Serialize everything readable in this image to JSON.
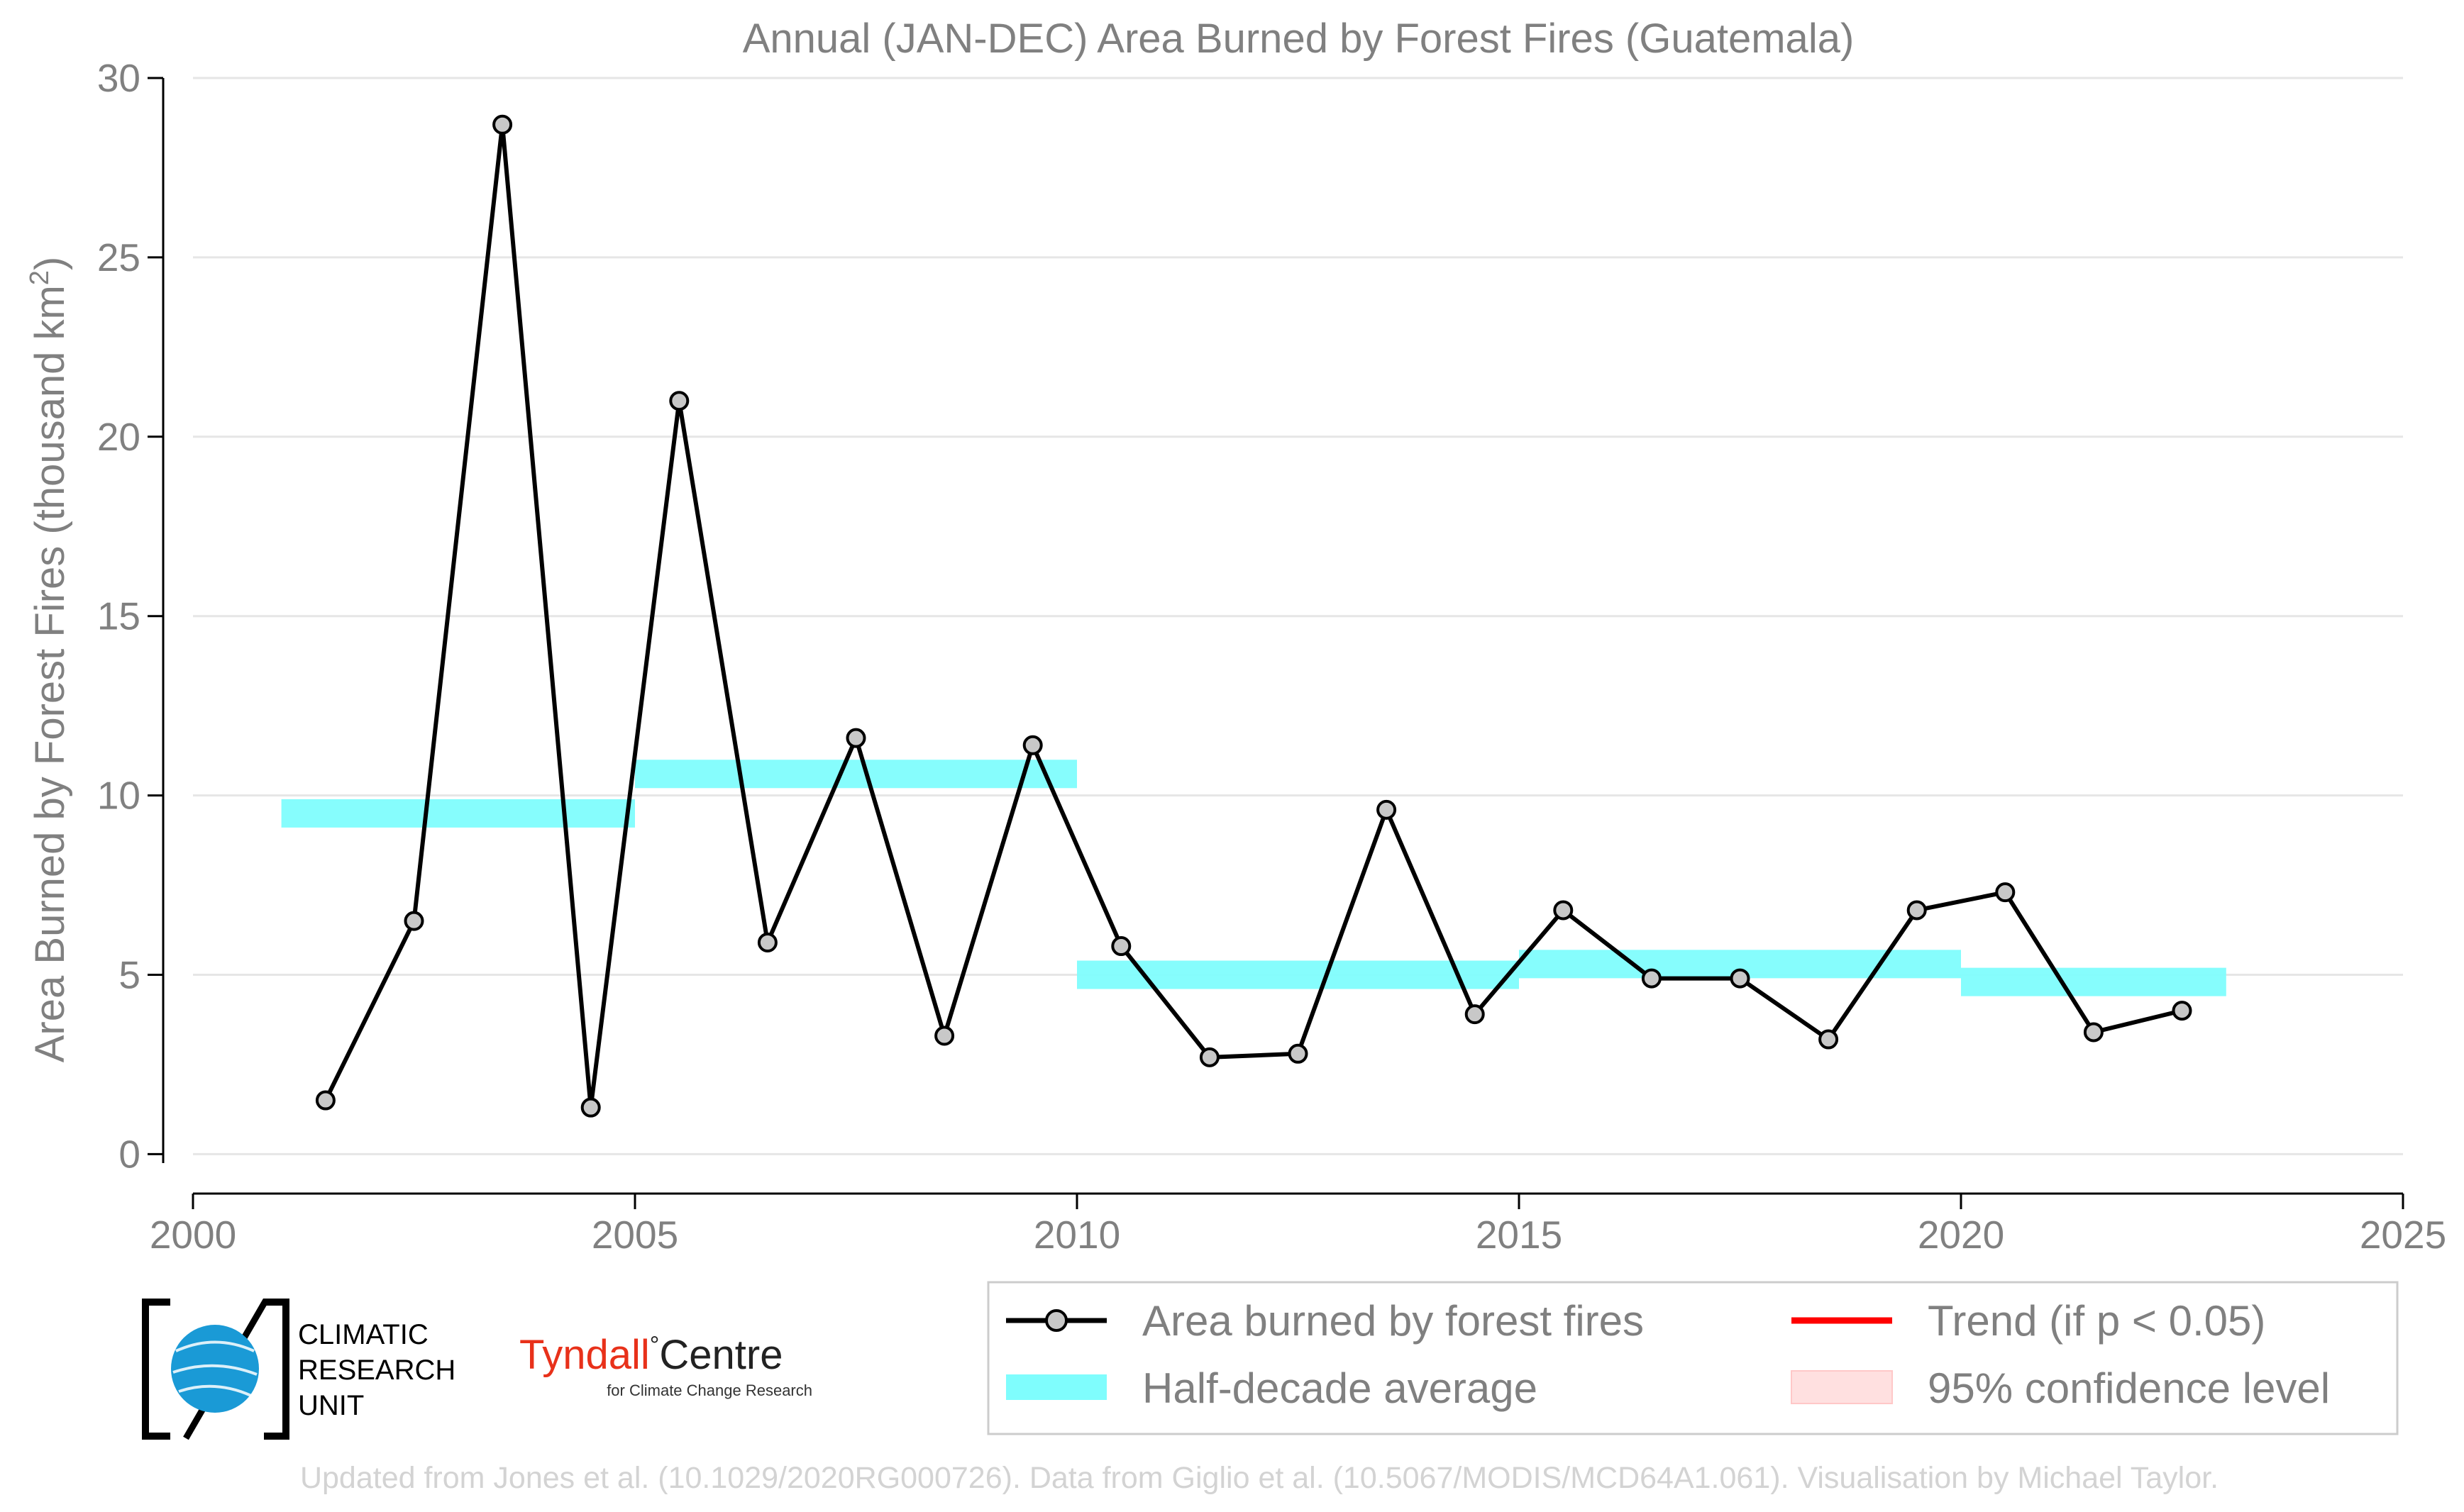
{
  "chart_data": {
    "type": "line",
    "title": "Annual (JAN-DEC) Area Burned by Forest Fires (Guatemala)",
    "ylabel_main": "Area Burned by Forest Fires (thousand km",
    "ylabel_sup": "2",
    "ylabel_close": ")",
    "xlim": [
      2000,
      2025
    ],
    "ylim": [
      -1,
      30
    ],
    "x_ticks": [
      "2000",
      "2005",
      "2010",
      "2015",
      "2020",
      "2025"
    ],
    "y_ticks": [
      "0",
      "5",
      "10",
      "15",
      "20",
      "25",
      "30"
    ],
    "grid": "horizontal",
    "series": [
      {
        "name": "Area burned by forest fires",
        "color": "#000000",
        "x": [
          2001.5,
          2002.5,
          2003.5,
          2004.5,
          2005.5,
          2006.5,
          2007.5,
          2008.5,
          2009.5,
          2010.5,
          2011.5,
          2012.5,
          2013.5,
          2014.5,
          2015.5,
          2016.5,
          2017.5,
          2018.5,
          2019.5,
          2020.5,
          2021.5,
          2022.5
        ],
        "y": [
          1.5,
          6.5,
          28.7,
          1.3,
          21.0,
          5.9,
          11.6,
          3.3,
          11.4,
          5.8,
          2.7,
          2.8,
          9.6,
          3.9,
          6.8,
          4.9,
          4.9,
          3.2,
          6.8,
          7.3,
          3.4,
          4.0
        ]
      }
    ],
    "half_decade_average": {
      "name": "Half-decade average",
      "color": "#7ffdfd",
      "segments": [
        {
          "x0": 2001,
          "x1": 2005,
          "value": 9.5
        },
        {
          "x0": 2005,
          "x1": 2010,
          "value": 10.6
        },
        {
          "x0": 2010,
          "x1": 2015,
          "value": 5.0
        },
        {
          "x0": 2015,
          "x1": 2020,
          "value": 5.3
        },
        {
          "x0": 2020,
          "x1": 2023,
          "value": 4.8
        }
      ]
    },
    "legend": [
      {
        "label": "Area burned by forest fires",
        "kind": "line-marker",
        "color": "#000000"
      },
      {
        "label": "Trend (if p < 0.05)",
        "kind": "line",
        "color": "#ff0000"
      },
      {
        "label": "Half-decade average",
        "kind": "band",
        "color": "#7ffdfd"
      },
      {
        "label": "95% confidence level",
        "kind": "patch",
        "color": "#ffe0e0"
      }
    ],
    "legend_placement": "bottom-right, below plot"
  },
  "logos": {
    "cru_lines": [
      "CLIMATIC",
      "RESEARCH",
      "UNIT"
    ],
    "tyndall_red": "Tyndall",
    "tyndall_mark": "°",
    "tyndall_black": "Centre",
    "tyndall_sub": "for Climate Change Research"
  },
  "footer": "Updated from Jones et al. (10.1029/2020RG000726). Data from Giglio et al. (10.5067/MODIS/MCD64A1.061). Visualisation by Michael Taylor."
}
